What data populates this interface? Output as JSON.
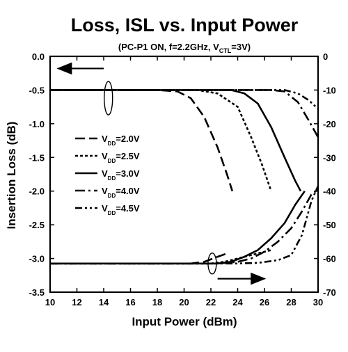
{
  "chart_data": {
    "type": "line",
    "title": "Loss, ISL vs. Input Power",
    "subtitle": {
      "prefix": "(PC-P1 ON, f=2.2GHz, V",
      "subscript": "CTL",
      "suffix": "=3V)"
    },
    "xlabel": "Input Power (dBm)",
    "ylabel_left": "Insertion Loss (dB)",
    "ylabel_right": "",
    "xlim": [
      10,
      30
    ],
    "ylim_left": [
      -3.5,
      0.0
    ],
    "ylim_right": [
      -70,
      0
    ],
    "x_ticks": [
      "10",
      "12",
      "14",
      "16",
      "18",
      "20",
      "22",
      "24",
      "26",
      "28",
      "30"
    ],
    "y_left_ticks": [
      "0.0",
      "-0.5",
      "-1.0",
      "-1.5",
      "-2.0",
      "-2.5",
      "-3.0",
      "-3.5"
    ],
    "y_right_ticks": [
      "0",
      "-10",
      "-20",
      "-30",
      "-40",
      "-50",
      "-60",
      "-70"
    ],
    "grid": false,
    "legend_position": "left-middle",
    "series": [
      {
        "name": {
          "prefix": "V",
          "subscript": "DD",
          "suffix": "=2.0V"
        },
        "dash": "longdash",
        "insertion_loss": {
          "x": [
            10,
            18,
            19.5,
            20.5,
            21.5,
            22.5,
            23.2,
            23.6
          ],
          "y": [
            -0.5,
            -0.5,
            -0.52,
            -0.62,
            -0.9,
            -1.35,
            -1.75,
            -2.0
          ]
        },
        "isolation": {
          "x": [
            10,
            20.5,
            21.5,
            22.5,
            23.2
          ],
          "y": [
            -61.5,
            -61.5,
            -61.0,
            -59.5,
            -58.5
          ]
        }
      },
      {
        "name": {
          "prefix": "V",
          "subscript": "DD",
          "suffix": "=2.5V"
        },
        "dash": "dotted",
        "insertion_loss": {
          "x": [
            10,
            21,
            22.5,
            24,
            25,
            25.8,
            26.5
          ],
          "y": [
            -0.5,
            -0.5,
            -0.55,
            -0.75,
            -1.2,
            -1.6,
            -2.0
          ]
        },
        "isolation": {
          "x": [
            10,
            22,
            23,
            24,
            25.5,
            26.5
          ],
          "y": [
            -61.5,
            -61.5,
            -61.0,
            -60.0,
            -58.5,
            -57.5
          ]
        }
      },
      {
        "name": {
          "prefix": "V",
          "subscript": "DD",
          "suffix": "=3.0V"
        },
        "dash": "solid",
        "insertion_loss": {
          "x": [
            10,
            23.5,
            24.5,
            25.5,
            26.5,
            27.5,
            28.3,
            28.7
          ],
          "y": [
            -0.5,
            -0.5,
            -0.55,
            -0.7,
            -1.05,
            -1.5,
            -1.85,
            -2.0
          ]
        },
        "isolation": {
          "x": [
            10,
            22.5,
            23.5,
            24.5,
            25.5,
            26.5,
            27.5,
            28.3,
            29.0
          ],
          "y": [
            -61.5,
            -61.5,
            -61.0,
            -59.5,
            -57.5,
            -54.0,
            -49.5,
            -44.0,
            -40.0
          ]
        }
      },
      {
        "name": {
          "prefix": "V",
          "subscript": "DD",
          "suffix": "=4.0V"
        },
        "dash": "dashdot",
        "insertion_loss": {
          "x": [
            10,
            25,
            26.5,
            27.5,
            28.5,
            29.3,
            30
          ],
          "y": [
            -0.5,
            -0.5,
            -0.5,
            -0.52,
            -0.68,
            -0.95,
            -1.2
          ]
        },
        "isolation": {
          "x": [
            10,
            22.5,
            24,
            25,
            26,
            27,
            28,
            28.8,
            29.5,
            30
          ],
          "y": [
            -61.5,
            -61.5,
            -61.0,
            -60.0,
            -58.0,
            -55.0,
            -51.0,
            -46.0,
            -41.0,
            -39.5
          ]
        }
      },
      {
        "name": {
          "prefix": "V",
          "subscript": "DD",
          "suffix": "=4.5V"
        },
        "dash": "dashdotdot",
        "insertion_loss": {
          "x": [
            10,
            26,
            27.5,
            28.5,
            29.3,
            30
          ],
          "y": [
            -0.5,
            -0.5,
            -0.5,
            -0.55,
            -0.65,
            -0.78
          ]
        },
        "isolation": {
          "x": [
            10,
            24,
            25.5,
            27,
            28,
            28.8,
            29.5,
            30
          ],
          "y": [
            -61.5,
            -61.5,
            -61.3,
            -60.5,
            -59.0,
            -53.0,
            -43.0,
            -38.5
          ]
        }
      }
    ]
  }
}
